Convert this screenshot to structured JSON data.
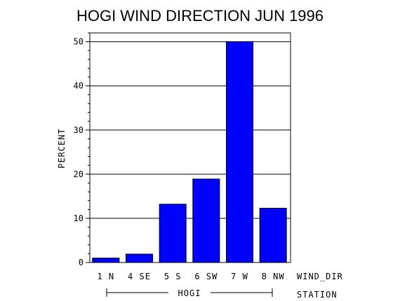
{
  "chart_data": {
    "type": "bar",
    "title": "HOGI WIND DIRECTION JUN 1996",
    "ylabel": "PERCENT",
    "xlabel": "WIND_DIR",
    "group_axis_label": "STATION",
    "group_label": "HOGI",
    "categories": [
      "1 N",
      "4 SE",
      "5 S",
      "6 SW",
      "7 W",
      "8 NW"
    ],
    "values": [
      1.0,
      1.9,
      13.2,
      18.9,
      50.0,
      12.3
    ],
    "ylim": [
      0,
      52
    ],
    "yticks": [
      0,
      10,
      20,
      30,
      40,
      50
    ],
    "grid": true,
    "bar_color": "#0000ff"
  }
}
